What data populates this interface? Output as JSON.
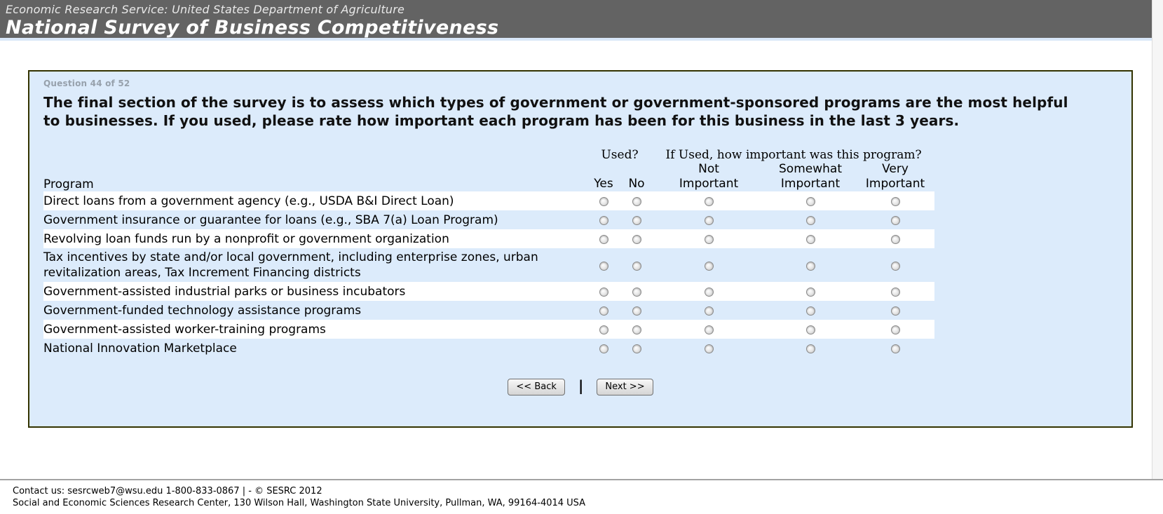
{
  "header": {
    "agency_line": "Economic Research Service: United States Department of Agriculture",
    "title": "National Survey of Business Competitiveness"
  },
  "survey": {
    "question_label": "Question 44 of 52",
    "question_text": "The final section of the survey is to assess which types of government or government-sponsored programs are the most helpful to businesses. If you used, please rate how important each program has been for this business in the last 3 years.",
    "table": {
      "program_header": "Program",
      "used_group_header": "Used?",
      "importance_group_header": "If Used, how important was this program?",
      "yes_label": "Yes",
      "no_label": "No",
      "importance_cols": [
        "Not Important",
        "Somewhat Important",
        "Very Important"
      ]
    },
    "programs": [
      "Direct loans from a government agency (e.g., USDA B&I Direct Loan)",
      "Government insurance or guarantee for loans (e.g., SBA 7(a) Loan Program)",
      "Revolving loan funds run by a nonprofit or government organization",
      "Tax incentives by state and/or local government, including enterprise zones, urban revitalization areas, Tax Increment Financing districts",
      "Government-assisted industrial parks or business incubators",
      "Government-funded technology assistance programs",
      "Government-assisted worker-training programs",
      "National Innovation Marketplace"
    ],
    "buttons": {
      "back_label": "<< Back",
      "separator": "|",
      "next_label": "Next >>"
    }
  },
  "footer": {
    "line1": "Contact us: sesrcweb7@wsu.edu 1-800-833-0867 | - © SESRC 2012",
    "line2": "Social and Economic Sciences Research Center, 130 Wilson Hall, Washington State University, Pullman, WA, 99164-4014 USA"
  },
  "colors": {
    "header_bg": "#636363",
    "header_underline": "#d9e7f8",
    "panel_bg": "#dcebfb",
    "panel_border": "#333300",
    "stripe_row": "#ffffff",
    "question_label_gray": "#97a1ac"
  }
}
